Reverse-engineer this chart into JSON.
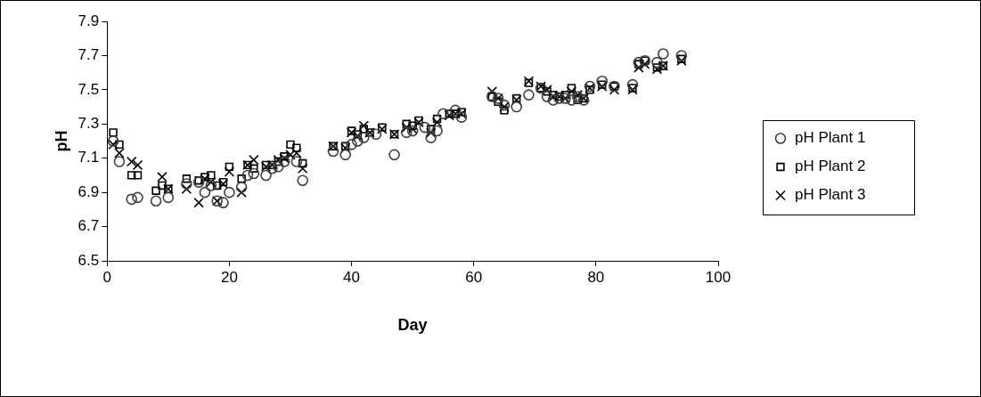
{
  "chart_data": {
    "type": "scatter",
    "xlabel": "Day",
    "ylabel": "pH",
    "xlim": [
      0,
      100
    ],
    "xticks": [
      0,
      20,
      40,
      60,
      80,
      100
    ],
    "ylim": [
      6.5,
      7.9
    ],
    "yticks": [
      6.5,
      6.7,
      6.9,
      7.1,
      7.3,
      7.5,
      7.7,
      7.9
    ],
    "grid": false,
    "legend": "right",
    "series": [
      {
        "name": "pH Plant 1",
        "color": "#404040",
        "marker": "circle",
        "x": [
          1,
          2,
          4,
          5,
          8,
          10,
          13,
          15,
          16,
          17,
          18,
          19,
          20,
          22,
          23,
          24,
          26,
          27,
          28,
          29,
          31,
          32,
          37,
          39,
          40,
          41,
          42,
          44,
          47,
          49,
          50,
          52,
          53,
          54,
          55,
          57,
          58,
          63,
          64,
          65,
          67,
          69,
          71,
          72,
          73,
          74,
          75,
          76,
          77,
          78,
          79,
          81,
          83,
          86,
          87,
          88,
          90,
          91,
          94
        ],
        "values": [
          7.2,
          7.08,
          6.86,
          6.87,
          6.85,
          6.87,
          6.95,
          6.96,
          6.9,
          6.94,
          6.85,
          6.84,
          6.9,
          6.93,
          7.0,
          7.01,
          7.0,
          7.04,
          7.05,
          7.08,
          7.08,
          6.97,
          7.14,
          7.12,
          7.18,
          7.2,
          7.22,
          7.24,
          7.12,
          7.25,
          7.26,
          7.28,
          7.22,
          7.26,
          7.36,
          7.38,
          7.34,
          7.46,
          7.45,
          7.41,
          7.4,
          7.47,
          7.51,
          7.46,
          7.44,
          7.45,
          7.45,
          7.44,
          7.46,
          7.44,
          7.52,
          7.55,
          7.52,
          7.53,
          7.66,
          7.67,
          7.66,
          7.71,
          7.7
        ]
      },
      {
        "name": "pH Plant 2",
        "color": "#000000",
        "marker": "square",
        "x": [
          1,
          2,
          4,
          5,
          8,
          9,
          10,
          13,
          15,
          16,
          17,
          18,
          19,
          20,
          22,
          23,
          24,
          26,
          27,
          28,
          29,
          30,
          31,
          32,
          37,
          39,
          40,
          41,
          42,
          43,
          45,
          47,
          49,
          50,
          51,
          53,
          54,
          56,
          57,
          58,
          63,
          64,
          65,
          67,
          69,
          71,
          72,
          73,
          74,
          75,
          76,
          77,
          78,
          79,
          81,
          83,
          86,
          87,
          88,
          90,
          91,
          94
        ],
        "values": [
          7.25,
          7.18,
          7.0,
          7.0,
          6.91,
          6.94,
          6.92,
          6.98,
          6.97,
          6.99,
          7.0,
          6.94,
          6.96,
          7.05,
          6.98,
          7.06,
          7.04,
          7.06,
          7.06,
          7.08,
          7.11,
          7.18,
          7.16,
          7.07,
          7.17,
          7.17,
          7.26,
          7.24,
          7.27,
          7.25,
          7.28,
          7.24,
          7.3,
          7.29,
          7.32,
          7.27,
          7.33,
          7.36,
          7.36,
          7.37,
          7.46,
          7.43,
          7.38,
          7.45,
          7.54,
          7.51,
          7.49,
          7.47,
          7.46,
          7.47,
          7.51,
          7.44,
          7.45,
          7.5,
          7.53,
          7.52,
          7.51,
          7.65,
          7.67,
          7.63,
          7.64,
          7.68
        ]
      },
      {
        "name": "pH Plant 3",
        "color": "#000000",
        "marker": "cross",
        "x": [
          1,
          2,
          4,
          5,
          9,
          10,
          13,
          15,
          16,
          17,
          18,
          19,
          20,
          22,
          23,
          24,
          26,
          27,
          28,
          29,
          30,
          31,
          32,
          37,
          39,
          40,
          41,
          42,
          43,
          45,
          47,
          49,
          50,
          51,
          53,
          54,
          56,
          57,
          58,
          63,
          64,
          65,
          67,
          69,
          71,
          72,
          73,
          74,
          75,
          76,
          77,
          78,
          79,
          81,
          83,
          86,
          87,
          88,
          90,
          91,
          94
        ],
        "values": [
          7.18,
          7.13,
          7.08,
          7.06,
          6.99,
          6.92,
          6.92,
          6.84,
          6.98,
          6.96,
          6.85,
          6.95,
          7.02,
          6.9,
          7.06,
          7.09,
          7.05,
          7.06,
          7.09,
          7.1,
          7.12,
          7.13,
          7.04,
          7.17,
          7.16,
          7.25,
          7.23,
          7.29,
          7.25,
          7.27,
          7.24,
          7.28,
          7.27,
          7.31,
          7.25,
          7.31,
          7.35,
          7.36,
          7.36,
          7.49,
          7.45,
          7.4,
          7.44,
          7.55,
          7.52,
          7.5,
          7.46,
          7.46,
          7.45,
          7.49,
          7.47,
          7.45,
          7.51,
          7.52,
          7.5,
          7.5,
          7.63,
          7.65,
          7.62,
          7.64,
          7.67
        ]
      }
    ]
  }
}
